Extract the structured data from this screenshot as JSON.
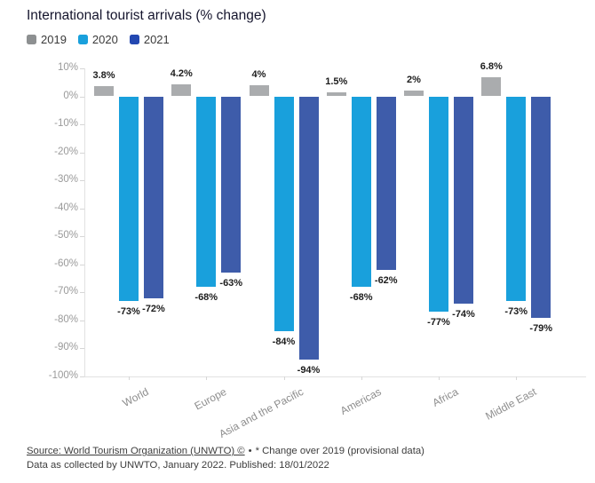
{
  "title": "International tourist arrivals (% change)",
  "chart_data": {
    "type": "bar",
    "title": "International tourist arrivals (% change)",
    "categories": [
      "World",
      "Europe",
      "Asia and the Pacific",
      "Americas",
      "Africa",
      "Middle East"
    ],
    "series": [
      {
        "name": "2019",
        "color": "#aaacae",
        "legend_color": "#8d9091",
        "values": [
          3.8,
          4.2,
          4,
          1.5,
          2,
          6.8
        ],
        "labels": [
          "3.8%",
          "4.2%",
          "4%",
          "1.5%",
          "2%",
          "6.8%"
        ]
      },
      {
        "name": "2020",
        "color": "#19a0dc",
        "legend_color": "#19a0dc",
        "values": [
          -73,
          -68,
          -84,
          -68,
          -77,
          -73
        ],
        "labels": [
          "-73%",
          "-68%",
          "-84%",
          "-68%",
          "-77%",
          "-73%"
        ]
      },
      {
        "name": "2021",
        "color": "#3e5caa",
        "legend_color": "#2348b1",
        "values": [
          -72,
          -63,
          -94,
          -62,
          -74,
          -79
        ],
        "labels": [
          "-72%",
          "-63%",
          "-94%",
          "-62%",
          "-74%",
          "-79%"
        ]
      }
    ],
    "ylim": [
      -100,
      10
    ],
    "yticks": [
      "10%",
      "0%",
      "-10%",
      "-20%",
      "-30%",
      "-40%",
      "-50%",
      "-60%",
      "-70%",
      "-80%",
      "-90%",
      "-100%"
    ],
    "grid": false,
    "legend_position": "top-left",
    "xlabel": "",
    "ylabel": ""
  },
  "footer": {
    "source_label": "Source: World Tourism Organization (UNWTO) ©",
    "separator": "•",
    "note": "* Change over 2019 (provisional data)",
    "line2": "Data as collected by UNWTO, January 2022. Published: 18/01/2022"
  }
}
